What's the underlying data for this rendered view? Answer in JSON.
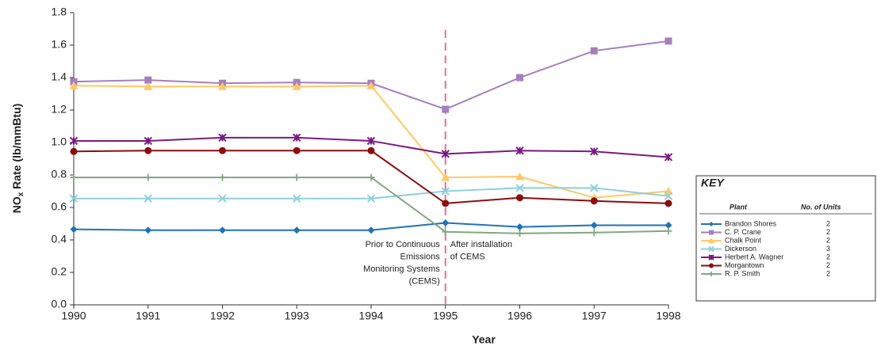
{
  "chart_data": {
    "type": "line",
    "y_label_parts": [
      "NO",
      "x",
      " Rate (lb/mmBtu)"
    ],
    "x_label": "Year",
    "x": [
      1990,
      1991,
      1992,
      1993,
      1994,
      1995,
      1996,
      1997,
      1998
    ],
    "xlim": [
      1990,
      1998
    ],
    "xticks": [
      1990,
      1991,
      1992,
      1993,
      1994,
      1995,
      1996,
      1997,
      1998
    ],
    "ylim": [
      0,
      1.8
    ],
    "yticks": [
      {
        "value": 0,
        "label": "0.0"
      },
      {
        "value": 0.2,
        "label": "0.2"
      },
      {
        "value": 0.4,
        "label": "0.4"
      },
      {
        "value": 0.6,
        "label": "0.6"
      },
      {
        "value": 0.8,
        "label": "0.8"
      },
      {
        "value": 1.0,
        "label": "1.0"
      },
      {
        "value": 1.2,
        "label": "1.2"
      },
      {
        "value": 1.4,
        "label": "1.4"
      },
      {
        "value": 1.6,
        "label": "1.6"
      },
      {
        "value": 1.8,
        "label": "1.8"
      }
    ],
    "divider_x": 1995,
    "divider_color": "#e8708a",
    "annotation_left": [
      "Prior to Continuous",
      "Emissions",
      "Monitoring Systems",
      "(CEMS)"
    ],
    "annotation_right": [
      "After installation",
      "of CEMS"
    ],
    "legend": {
      "title": "KEY",
      "col_plant": "Plant",
      "col_units": "No. of Units"
    },
    "series": [
      {
        "name": "Brandon Shores",
        "units": "2",
        "color": "#1f72b8",
        "marker": "diamond",
        "values": [
          0.465,
          0.46,
          0.46,
          0.46,
          0.46,
          0.505,
          0.48,
          0.49,
          0.49
        ]
      },
      {
        "name": "C. P. Crane",
        "units": "2",
        "color": "#a67fbd",
        "marker": "square",
        "values": [
          1.375,
          1.385,
          1.365,
          1.37,
          1.365,
          1.205,
          1.4,
          1.565,
          1.625
        ]
      },
      {
        "name": "Chalk Point",
        "units": "2",
        "color": "#ffc866",
        "marker": "triangle",
        "values": [
          1.35,
          1.345,
          1.345,
          1.345,
          1.35,
          0.785,
          0.79,
          0.66,
          0.7
        ]
      },
      {
        "name": "Dickerson",
        "units": "3",
        "color": "#8ecfe0",
        "marker": "x",
        "values": [
          0.655,
          0.655,
          0.655,
          0.655,
          0.655,
          0.7,
          0.72,
          0.72,
          0.67
        ]
      },
      {
        "name": "Herbert A. Wagner",
        "units": "2",
        "color": "#7a1a80",
        "marker": "star",
        "values": [
          1.01,
          1.01,
          1.03,
          1.03,
          1.01,
          0.93,
          0.95,
          0.945,
          0.91
        ]
      },
      {
        "name": "Morgantown",
        "units": "2",
        "color": "#8b0e0e",
        "marker": "circle",
        "values": [
          0.945,
          0.95,
          0.95,
          0.95,
          0.95,
          0.625,
          0.66,
          0.64,
          0.625
        ]
      },
      {
        "name": "R. P. Smith",
        "units": "2",
        "color": "#80a880",
        "marker": "plus",
        "values": [
          0.785,
          0.785,
          0.785,
          0.785,
          0.785,
          0.45,
          0.44,
          0.445,
          0.455
        ]
      }
    ]
  }
}
